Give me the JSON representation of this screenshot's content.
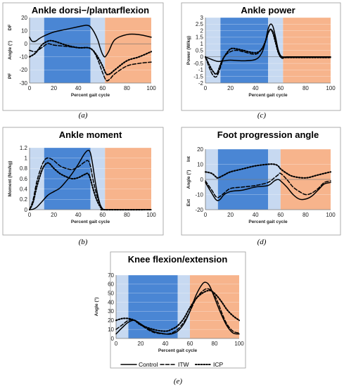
{
  "colors": {
    "swing_light": "#c7d9f1",
    "stance_dark": "#4a86d4",
    "swing_orange": "#f7b48c",
    "axis": "#888888",
    "grid": "#dddddd",
    "line": "#000000"
  },
  "legend": {
    "items": [
      {
        "label": "Control",
        "style": "solid"
      },
      {
        "label": "ITW",
        "style": "dashed"
      },
      {
        "label": "ICP",
        "style": "dotted"
      }
    ]
  },
  "charts": [
    {
      "title": "Ankle dorsi−/plantarflexion",
      "caption": "(a)",
      "ylabel": "Angle (°)",
      "ylabel_top": "DF",
      "ylabel_bottom": "PF",
      "xlabel": "Percent gait cycle",
      "yticks": [
        "20",
        "10",
        "0",
        "-10",
        "-20",
        "-30"
      ],
      "xticks": [
        "0",
        "20",
        "40",
        "60",
        "80",
        "100"
      ]
    },
    {
      "title": "Ankle power",
      "caption": "(c)",
      "ylabel": "Power (W/kg)",
      "xlabel": "Percent gait cycle",
      "yticks": [
        "3",
        "2.5",
        "2",
        "1.5",
        "1",
        "0.5",
        "0",
        "-0.5",
        "-1",
        "-1.5",
        "-2"
      ],
      "xticks": [
        "0",
        "20",
        "40",
        "60",
        "80",
        "100"
      ]
    },
    {
      "title": "Ankle moment",
      "caption": "(b)",
      "ylabel": "Moment (Nm/kg)",
      "xlabel": "Percent gait cycle",
      "yticks": [
        "1.2",
        "1",
        "0.8",
        "0.6",
        "0.4",
        "0.2",
        "0"
      ],
      "xticks": [
        "0",
        "20",
        "40",
        "60",
        "80",
        "100"
      ]
    },
    {
      "title": "Foot progression angle",
      "caption": "(d)",
      "ylabel": "Angle (°)",
      "ylabel_top": "Int",
      "ylabel_bottom": "Ext",
      "xlabel": "Percent gait cycle",
      "yticks": [
        "20",
        "10",
        "0",
        "-10",
        "-20"
      ],
      "xticks": [
        "0",
        "20",
        "40",
        "60",
        "80",
        "100"
      ]
    },
    {
      "title": "Knee flexion/extension",
      "caption": "(e)",
      "ylabel": "Angle (°)",
      "xlabel": "Percent gait cycle",
      "yticks": [
        "70",
        "60",
        "50",
        "40",
        "30",
        "20",
        "10",
        "0"
      ],
      "xticks": [
        "0",
        "20",
        "40",
        "60",
        "80",
        "100"
      ]
    }
  ],
  "chart_data": [
    {
      "type": "line",
      "title": "Ankle dorsi−/plantarflexion",
      "xlabel": "Percent gait cycle",
      "ylabel": "Angle (°)",
      "xlim": [
        0,
        100
      ],
      "ylim": [
        -30,
        20
      ],
      "bands": [
        {
          "from": 0,
          "to": 12,
          "color": "#c7d9f1"
        },
        {
          "from": 12,
          "to": 50,
          "color": "#4a86d4"
        },
        {
          "from": 50,
          "to": 62,
          "color": "#c7d9f1"
        },
        {
          "from": 62,
          "to": 100,
          "color": "#f7b48c"
        }
      ],
      "series": [
        {
          "name": "Control",
          "style": "solid",
          "x": [
            0,
            2,
            5,
            8,
            12,
            20,
            30,
            40,
            45,
            48,
            50,
            53,
            56,
            58,
            60,
            62,
            65,
            70,
            80,
            90,
            100
          ],
          "y": [
            5,
            2,
            2,
            4,
            6,
            9,
            11,
            13,
            14,
            14,
            13,
            9,
            3,
            -3,
            -8,
            -10,
            -6,
            3,
            7,
            7,
            5
          ]
        },
        {
          "name": "ITW",
          "style": "dashed",
          "x": [
            0,
            5,
            10,
            15,
            20,
            30,
            40,
            48,
            52,
            56,
            60,
            63,
            66,
            70,
            80,
            90,
            100
          ],
          "y": [
            -5,
            -6,
            -3,
            0,
            -1,
            -2,
            -3,
            -3,
            -5,
            -12,
            -22,
            -28,
            -27,
            -23,
            -17,
            -15,
            -14
          ]
        },
        {
          "name": "ICP",
          "style": "dotted",
          "x": [
            0,
            5,
            10,
            15,
            20,
            30,
            40,
            48,
            52,
            56,
            60,
            63,
            66,
            70,
            80,
            90,
            100
          ],
          "y": [
            -10,
            -7,
            -1,
            2,
            2,
            -1,
            -3,
            -3,
            -5,
            -10,
            -17,
            -23,
            -23,
            -20,
            -13,
            -10,
            -6
          ]
        }
      ]
    },
    {
      "type": "line",
      "title": "Ankle power",
      "xlabel": "Percent gait cycle",
      "ylabel": "Power (W/kg)",
      "xlim": [
        0,
        100
      ],
      "ylim": [
        -2,
        3
      ],
      "bands": [
        {
          "from": 0,
          "to": 12,
          "color": "#c7d9f1"
        },
        {
          "from": 12,
          "to": 50,
          "color": "#4a86d4"
        },
        {
          "from": 50,
          "to": 62,
          "color": "#c7d9f1"
        },
        {
          "from": 62,
          "to": 100,
          "color": "#f7b48c"
        }
      ],
      "series": [
        {
          "name": "Control",
          "style": "solid",
          "x": [
            0,
            5,
            10,
            15,
            20,
            30,
            40,
            45,
            48,
            50,
            52,
            54,
            56,
            58,
            60,
            62,
            65,
            70,
            100
          ],
          "y": [
            0,
            -0.2,
            -0.35,
            -0.3,
            -0.25,
            -0.3,
            -0.2,
            0.3,
            1.2,
            2.1,
            2.5,
            2.3,
            1.5,
            0.6,
            0.1,
            0,
            0,
            0,
            0
          ]
        },
        {
          "name": "ITW",
          "style": "dashed",
          "x": [
            0,
            3,
            6,
            9,
            12,
            15,
            20,
            25,
            30,
            40,
            45,
            48,
            50,
            52,
            54,
            56,
            58,
            60,
            62,
            65,
            100
          ],
          "y": [
            0,
            -0.8,
            -1.4,
            -1.5,
            -0.8,
            0,
            0.4,
            0.5,
            0.4,
            0.2,
            0.6,
            1.2,
            1.8,
            2.1,
            1.9,
            1.2,
            0.4,
            0,
            -0.1,
            -0.05,
            -0.05
          ]
        },
        {
          "name": "ICP",
          "style": "dotted",
          "x": [
            0,
            3,
            6,
            9,
            12,
            15,
            20,
            25,
            30,
            40,
            45,
            48,
            50,
            52,
            54,
            56,
            58,
            60,
            62,
            65,
            100
          ],
          "y": [
            0,
            -0.6,
            -1.1,
            -1.3,
            -0.6,
            0,
            0.6,
            0.6,
            0.5,
            0.3,
            0.6,
            1.2,
            1.8,
            2.1,
            1.8,
            1.1,
            0.4,
            0,
            -0.1,
            -0.05,
            -0.05
          ]
        }
      ]
    },
    {
      "type": "line",
      "title": "Ankle moment",
      "xlabel": "Percent gait cycle",
      "ylabel": "Moment (Nm/kg)",
      "xlim": [
        0,
        100
      ],
      "ylim": [
        0,
        1.2
      ],
      "bands": [
        {
          "from": 0,
          "to": 12,
          "color": "#c7d9f1"
        },
        {
          "from": 12,
          "to": 50,
          "color": "#4a86d4"
        },
        {
          "from": 50,
          "to": 62,
          "color": "#c7d9f1"
        },
        {
          "from": 62,
          "to": 100,
          "color": "#f7b48c"
        }
      ],
      "series": [
        {
          "name": "Control",
          "style": "solid",
          "x": [
            0,
            3,
            6,
            10,
            15,
            20,
            25,
            30,
            35,
            40,
            45,
            48,
            50,
            52,
            55,
            58,
            60,
            62,
            100
          ],
          "y": [
            0,
            0.01,
            0.05,
            0.15,
            0.28,
            0.35,
            0.42,
            0.55,
            0.7,
            0.88,
            1.08,
            1.15,
            1.1,
            0.85,
            0.4,
            0.1,
            0.02,
            0,
            0
          ]
        },
        {
          "name": "ITW",
          "style": "dashed",
          "x": [
            0,
            3,
            6,
            10,
            13,
            16,
            20,
            25,
            30,
            35,
            40,
            45,
            48,
            50,
            52,
            55,
            58,
            60,
            62,
            100
          ],
          "y": [
            0,
            0.2,
            0.55,
            0.85,
            0.98,
            1.0,
            0.95,
            0.85,
            0.8,
            0.78,
            0.83,
            0.92,
            0.95,
            0.85,
            0.6,
            0.3,
            0.1,
            0.02,
            0,
            0
          ]
        },
        {
          "name": "ICP",
          "style": "dotted",
          "x": [
            0,
            3,
            6,
            10,
            13,
            16,
            20,
            25,
            30,
            35,
            40,
            45,
            48,
            50,
            52,
            55,
            58,
            60,
            62,
            100
          ],
          "y": [
            0,
            0.15,
            0.45,
            0.75,
            0.88,
            0.9,
            0.8,
            0.7,
            0.64,
            0.6,
            0.62,
            0.68,
            0.7,
            0.6,
            0.42,
            0.2,
            0.06,
            0.01,
            0,
            0
          ]
        }
      ]
    },
    {
      "type": "line",
      "title": "Foot progression angle",
      "xlabel": "Percent gait cycle",
      "ylabel": "Angle (°)",
      "xlim": [
        0,
        100
      ],
      "ylim": [
        -20,
        20
      ],
      "bands": [
        {
          "from": 0,
          "to": 10,
          "color": "#c7d9f1"
        },
        {
          "from": 10,
          "to": 50,
          "color": "#4a86d4"
        },
        {
          "from": 50,
          "to": 60,
          "color": "#c7d9f1"
        },
        {
          "from": 60,
          "to": 100,
          "color": "#f7b48c"
        }
      ],
      "series": [
        {
          "name": "Control",
          "style": "solid",
          "x": [
            0,
            5,
            8,
            10,
            12,
            15,
            20,
            30,
            40,
            50,
            55,
            58,
            60,
            65,
            70,
            75,
            80,
            85,
            90,
            95,
            100
          ],
          "y": [
            -2,
            -9,
            -13,
            -14,
            -13,
            -10,
            -8,
            -7,
            -5,
            -4,
            -1,
            0,
            -1,
            -5,
            -10,
            -13,
            -13,
            -11,
            -7,
            -3,
            -2
          ]
        },
        {
          "name": "ITW",
          "style": "dashed",
          "x": [
            0,
            5,
            8,
            10,
            12,
            15,
            20,
            30,
            40,
            50,
            55,
            58,
            60,
            65,
            70,
            75,
            80,
            85,
            90,
            95,
            100
          ],
          "y": [
            -1,
            -7,
            -11,
            -12,
            -11,
            -9,
            -6,
            -5,
            -4,
            -2,
            1,
            3,
            4,
            0,
            -5,
            -8,
            -10,
            -9,
            -6,
            -2,
            -1
          ]
        },
        {
          "name": "ICP",
          "style": "dotted",
          "x": [
            0,
            5,
            8,
            10,
            15,
            20,
            30,
            40,
            50,
            55,
            58,
            60,
            65,
            70,
            80,
            90,
            100
          ],
          "y": [
            5,
            4,
            2,
            1,
            3,
            5,
            7,
            9,
            10,
            10,
            9,
            7,
            4,
            2,
            1,
            3,
            5
          ]
        }
      ]
    },
    {
      "type": "line",
      "title": "Knee flexion/extension",
      "xlabel": "Percent gait cycle",
      "ylabel": "Angle (°)",
      "xlim": [
        0,
        100
      ],
      "ylim": [
        0,
        70
      ],
      "bands": [
        {
          "from": 0,
          "to": 10,
          "color": "#c7d9f1"
        },
        {
          "from": 10,
          "to": 50,
          "color": "#4a86d4"
        },
        {
          "from": 50,
          "to": 60,
          "color": "#c7d9f1"
        },
        {
          "from": 60,
          "to": 100,
          "color": "#f7b48c"
        }
      ],
      "series": [
        {
          "name": "Control",
          "style": "solid",
          "x": [
            0,
            5,
            10,
            15,
            20,
            30,
            40,
            45,
            50,
            55,
            60,
            65,
            70,
            73,
            76,
            80,
            85,
            90,
            95,
            100
          ],
          "y": [
            5,
            12,
            18,
            20,
            16,
            8,
            5,
            5,
            8,
            16,
            30,
            48,
            60,
            62,
            58,
            45,
            28,
            14,
            6,
            5
          ]
        },
        {
          "name": "ITW",
          "style": "dashed",
          "x": [
            0,
            5,
            10,
            15,
            20,
            30,
            40,
            45,
            50,
            55,
            60,
            65,
            70,
            74,
            78,
            82,
            86,
            90,
            95,
            100
          ],
          "y": [
            10,
            15,
            20,
            20,
            15,
            7,
            5,
            6,
            10,
            18,
            30,
            44,
            52,
            55,
            52,
            42,
            28,
            16,
            8,
            6
          ]
        },
        {
          "name": "ICP",
          "style": "dotted",
          "x": [
            0,
            5,
            10,
            15,
            20,
            30,
            40,
            45,
            50,
            55,
            60,
            65,
            70,
            75,
            78,
            82,
            86,
            90,
            95,
            100
          ],
          "y": [
            20,
            22,
            22,
            20,
            15,
            10,
            8,
            10,
            14,
            22,
            34,
            44,
            50,
            53,
            52,
            47,
            40,
            32,
            25,
            20
          ]
        }
      ]
    }
  ]
}
